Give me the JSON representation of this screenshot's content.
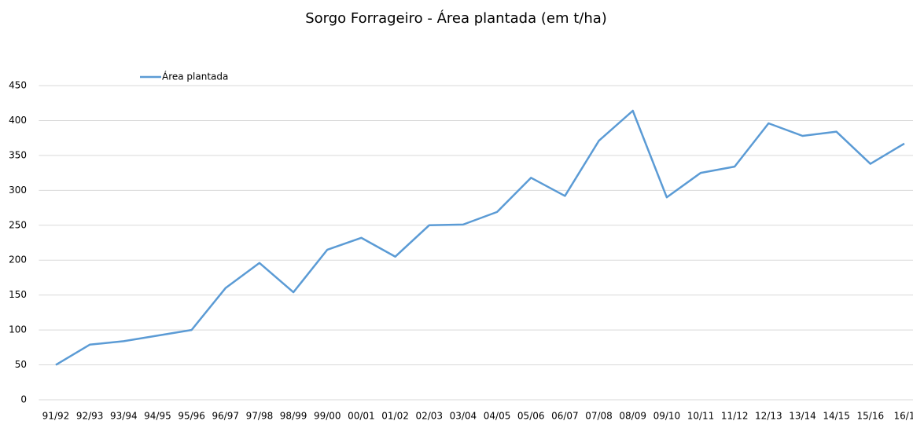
{
  "chart_data": {
    "type": "line",
    "title": "Sorgo Forrageiro - Área plantada  (em t/ha)",
    "categories": [
      "91/92",
      "92/93",
      "93/94",
      "94/95",
      "95/96",
      "96/97",
      "97/98",
      "98/99",
      "99/00",
      "00/01",
      "01/02",
      "02/03",
      "03/04",
      "04/05",
      "05/06",
      "06/07",
      "07/08",
      "08/09",
      "09/10",
      "10/11",
      "11/12",
      "12/13",
      "13/14",
      "14/15",
      "15/16",
      "16/1"
    ],
    "series": [
      {
        "name": "Área plantada",
        "color": "#5b9bd5",
        "values": [
          50,
          79,
          84,
          92,
          100,
          160,
          196,
          154,
          215,
          232,
          205,
          250,
          251,
          269,
          318,
          292,
          371,
          414,
          290,
          325,
          334,
          396,
          378,
          384,
          338,
          367
        ]
      }
    ],
    "ylim": [
      0,
      450
    ],
    "yticks": [
      0,
      50,
      100,
      150,
      200,
      250,
      300,
      350,
      400,
      450
    ],
    "grid": true,
    "legend": "top-left"
  }
}
